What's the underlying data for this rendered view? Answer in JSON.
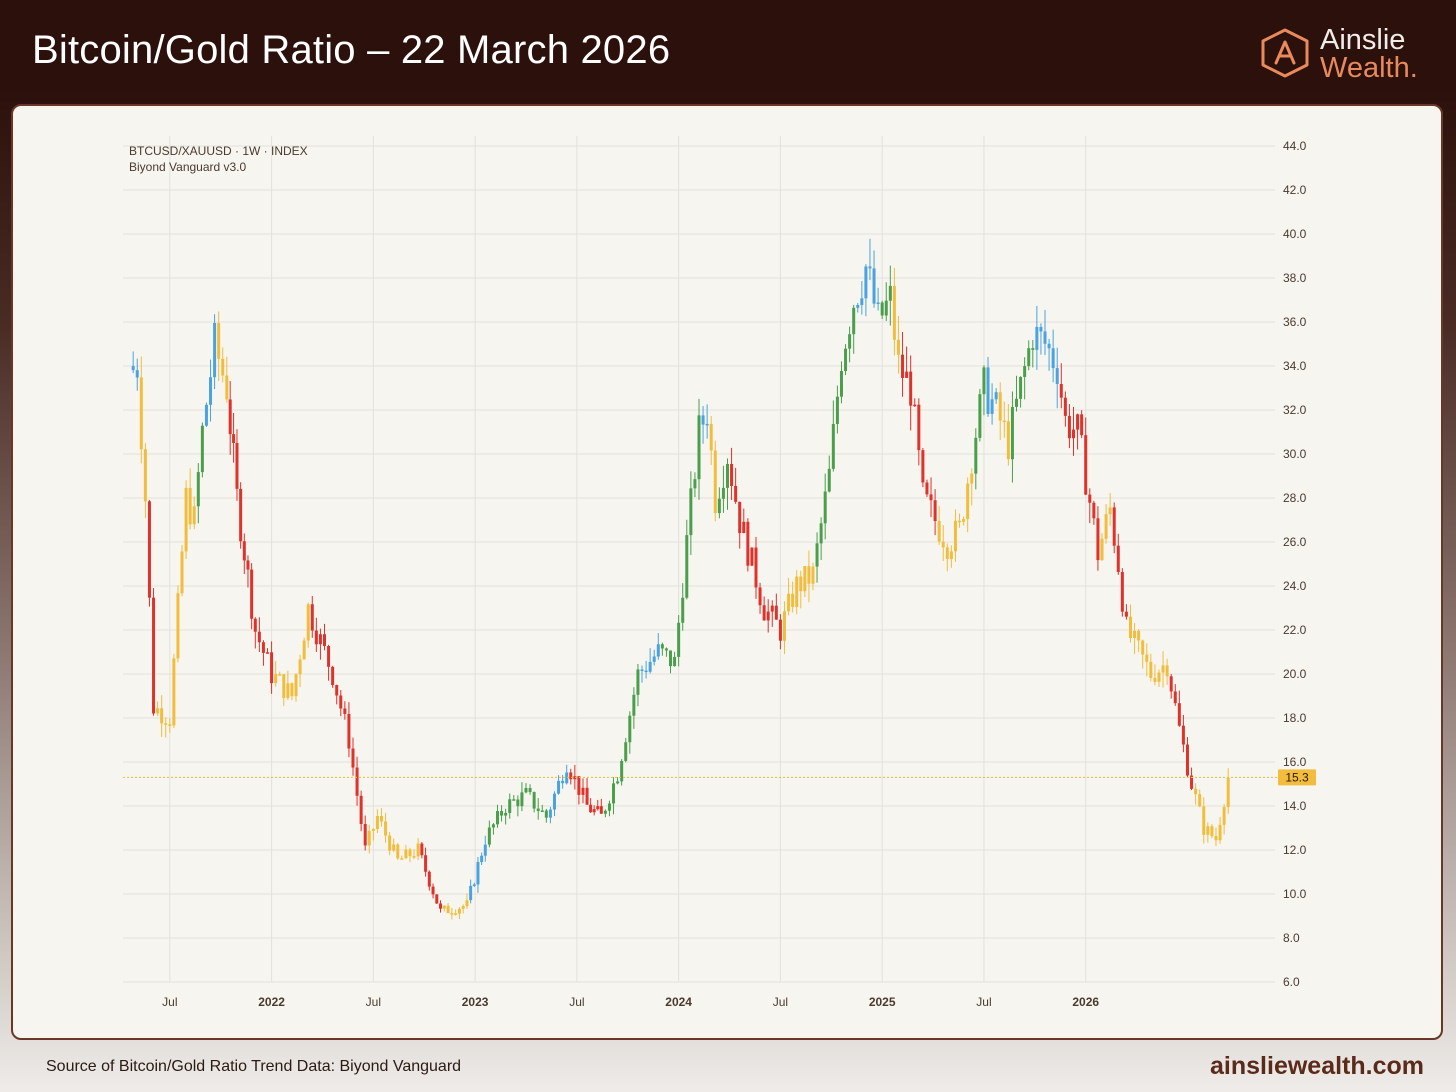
{
  "header": {
    "title": "Bitcoin/Gold Ratio – 22 March 2026",
    "logo_line1": "Ainslie",
    "logo_line2": "Wealth."
  },
  "footer": {
    "source": "Source of Bitcoin/Gold Ratio Trend Data: Biyond Vanguard",
    "url": "ainsliewealth.com"
  },
  "colors": {
    "header_bg": "#2b100b",
    "card_bg": "#f6f5f0",
    "bull": "#4a9e4c",
    "bear": "#e0322a",
    "neutral": "#f2bd3c",
    "strong": "#4aa3e0",
    "price_label": "#f2bd3c",
    "accent": "#e88a5c"
  },
  "chart_data": {
    "type": "candlestick",
    "symbol": "BTCUSD/XAUUSD · 1W · INDEX",
    "indicator": "Biyond Vanguard v3.0",
    "ylim": [
      6,
      44
    ],
    "y_ticks": [
      "44.0",
      "42.0",
      "40.0",
      "38.0",
      "36.0",
      "34.0",
      "32.0",
      "30.0",
      "28.0",
      "26.0",
      "24.0",
      "22.0",
      "20.0",
      "18.0",
      "16.0",
      "14.0",
      "12.0",
      "10.0",
      "8.0",
      "6.0"
    ],
    "x_ticks": [
      {
        "label": "Jul",
        "t": 2021.5,
        "bold": false
      },
      {
        "label": "2022",
        "t": 2022.0,
        "bold": true
      },
      {
        "label": "Jul",
        "t": 2022.5,
        "bold": false
      },
      {
        "label": "2023",
        "t": 2023.0,
        "bold": true
      },
      {
        "label": "Jul",
        "t": 2023.5,
        "bold": false
      },
      {
        "label": "2024",
        "t": 2024.0,
        "bold": true
      },
      {
        "label": "Jul",
        "t": 2024.5,
        "bold": false
      },
      {
        "label": "2025",
        "t": 2025.0,
        "bold": true
      },
      {
        "label": "Jul",
        "t": 2025.5,
        "bold": false
      },
      {
        "label": "2026",
        "t": 2026.0,
        "bold": true
      }
    ],
    "last_price": 15.3,
    "last_price_label": "15.3",
    "segments": [
      {
        "t": 2021.34,
        "close": 34.0,
        "color": "strong"
      },
      {
        "t": 2021.38,
        "close": 28.0,
        "color": "neutral"
      },
      {
        "t": 2021.42,
        "close": 18.5,
        "color": "bear"
      },
      {
        "t": 2021.5,
        "close": 18.0,
        "color": "neutral"
      },
      {
        "t": 2021.58,
        "close": 28.0,
        "color": "neutral"
      },
      {
        "t": 2021.62,
        "close": 27.0,
        "color": "neutral"
      },
      {
        "t": 2021.66,
        "close": 31.0,
        "color": "bull"
      },
      {
        "t": 2021.72,
        "close": 35.0,
        "color": "strong"
      },
      {
        "t": 2021.78,
        "close": 33.0,
        "color": "neutral"
      },
      {
        "t": 2021.83,
        "close": 28.0,
        "color": "bear"
      },
      {
        "t": 2021.92,
        "close": 22.0,
        "color": "bear"
      },
      {
        "t": 2022.0,
        "close": 20.0,
        "color": "bear"
      },
      {
        "t": 2022.1,
        "close": 19.0,
        "color": "neutral"
      },
      {
        "t": 2022.18,
        "close": 23.0,
        "color": "neutral"
      },
      {
        "t": 2022.22,
        "close": 22.0,
        "color": "bear"
      },
      {
        "t": 2022.3,
        "close": 20.0,
        "color": "bear"
      },
      {
        "t": 2022.38,
        "close": 17.0,
        "color": "bear"
      },
      {
        "t": 2022.46,
        "close": 12.0,
        "color": "bear"
      },
      {
        "t": 2022.52,
        "close": 13.5,
        "color": "neutral"
      },
      {
        "t": 2022.62,
        "close": 11.5,
        "color": "neutral"
      },
      {
        "t": 2022.72,
        "close": 12.0,
        "color": "neutral"
      },
      {
        "t": 2022.83,
        "close": 9.2,
        "color": "bear"
      },
      {
        "t": 2022.96,
        "close": 9.5,
        "color": "neutral"
      },
      {
        "t": 2023.05,
        "close": 12.5,
        "color": "strong"
      },
      {
        "t": 2023.15,
        "close": 14.0,
        "color": "bull"
      },
      {
        "t": 2023.25,
        "close": 14.5,
        "color": "bull"
      },
      {
        "t": 2023.35,
        "close": 13.5,
        "color": "bull"
      },
      {
        "t": 2023.45,
        "close": 16.0,
        "color": "strong"
      },
      {
        "t": 2023.55,
        "close": 14.0,
        "color": "bear"
      },
      {
        "t": 2023.62,
        "close": 13.5,
        "color": "bear"
      },
      {
        "t": 2023.7,
        "close": 15.5,
        "color": "bull"
      },
      {
        "t": 2023.8,
        "close": 20.0,
        "color": "bull"
      },
      {
        "t": 2023.9,
        "close": 21.0,
        "color": "strong"
      },
      {
        "t": 2023.98,
        "close": 20.5,
        "color": "bull"
      },
      {
        "t": 2024.04,
        "close": 26.0,
        "color": "bull"
      },
      {
        "t": 2024.1,
        "close": 31.0,
        "color": "bull"
      },
      {
        "t": 2024.14,
        "close": 32.0,
        "color": "strong"
      },
      {
        "t": 2024.18,
        "close": 28.0,
        "color": "neutral"
      },
      {
        "t": 2024.24,
        "close": 30.0,
        "color": "bull"
      },
      {
        "t": 2024.3,
        "close": 27.0,
        "color": "bear"
      },
      {
        "t": 2024.36,
        "close": 25.0,
        "color": "bear"
      },
      {
        "t": 2024.42,
        "close": 23.0,
        "color": "bear"
      },
      {
        "t": 2024.5,
        "close": 22.0,
        "color": "bear"
      },
      {
        "t": 2024.58,
        "close": 24.0,
        "color": "neutral"
      },
      {
        "t": 2024.66,
        "close": 24.5,
        "color": "neutral"
      },
      {
        "t": 2024.74,
        "close": 29.0,
        "color": "bull"
      },
      {
        "t": 2024.8,
        "close": 34.5,
        "color": "bull"
      },
      {
        "t": 2024.86,
        "close": 37.0,
        "color": "bull"
      },
      {
        "t": 2024.92,
        "close": 38.5,
        "color": "strong"
      },
      {
        "t": 2024.98,
        "close": 36.0,
        "color": "strong"
      },
      {
        "t": 2025.04,
        "close": 37.0,
        "color": "bull"
      },
      {
        "t": 2025.08,
        "close": 34.0,
        "color": "neutral"
      },
      {
        "t": 2025.14,
        "close": 33.0,
        "color": "bear"
      },
      {
        "t": 2025.2,
        "close": 28.0,
        "color": "bear"
      },
      {
        "t": 2025.26,
        "close": 27.0,
        "color": "bear"
      },
      {
        "t": 2025.32,
        "close": 26.0,
        "color": "neutral"
      },
      {
        "t": 2025.38,
        "close": 26.5,
        "color": "neutral"
      },
      {
        "t": 2025.44,
        "close": 30.0,
        "color": "neutral"
      },
      {
        "t": 2025.5,
        "close": 33.0,
        "color": "bull"
      },
      {
        "t": 2025.56,
        "close": 32.0,
        "color": "strong"
      },
      {
        "t": 2025.62,
        "close": 30.5,
        "color": "neutral"
      },
      {
        "t": 2025.68,
        "close": 33.0,
        "color": "bull"
      },
      {
        "t": 2025.74,
        "close": 35.5,
        "color": "bull"
      },
      {
        "t": 2025.8,
        "close": 35.0,
        "color": "strong"
      },
      {
        "t": 2025.86,
        "close": 34.0,
        "color": "strong"
      },
      {
        "t": 2025.9,
        "close": 31.5,
        "color": "bear"
      },
      {
        "t": 2025.96,
        "close": 31.0,
        "color": "bear"
      },
      {
        "t": 2026.0,
        "close": 29.0,
        "color": "bear"
      },
      {
        "t": 2026.06,
        "close": 25.5,
        "color": "bear"
      },
      {
        "t": 2026.12,
        "close": 27.5,
        "color": "neutral"
      },
      {
        "t": 2026.16,
        "close": 25.0,
        "color": "bear"
      },
      {
        "t": 2026.2,
        "close": 22.0,
        "color": "bear"
      },
      {
        "t": 2026.26,
        "close": 21.0,
        "color": "neutral"
      },
      {
        "t": 2026.32,
        "close": 20.0,
        "color": "neutral"
      },
      {
        "t": 2026.4,
        "close": 20.5,
        "color": "neutral"
      },
      {
        "t": 2026.46,
        "close": 17.5,
        "color": "bear"
      },
      {
        "t": 2026.52,
        "close": 15.0,
        "color": "bear"
      },
      {
        "t": 2026.58,
        "close": 13.0,
        "color": "neutral"
      },
      {
        "t": 2026.64,
        "close": 12.5,
        "color": "neutral"
      },
      {
        "t": 2026.7,
        "close": 15.3,
        "color": "neutral"
      }
    ]
  }
}
